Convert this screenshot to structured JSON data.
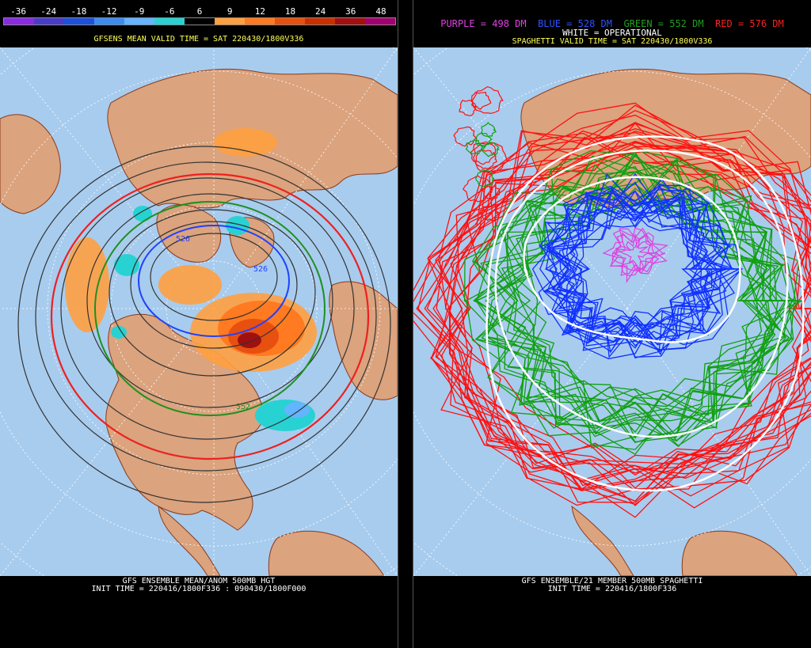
{
  "left": {
    "colorbar": {
      "labels": [
        "-36",
        "-24",
        "-18",
        "-12",
        "-9",
        "-6",
        "6",
        "9",
        "12",
        "18",
        "24",
        "36",
        "48"
      ],
      "colors": [
        "#8a2be2",
        "#4b3cc8",
        "#1e50dc",
        "#3c8cf0",
        "#64b4ff",
        "#28d2d2",
        "#000000",
        "#ffa040",
        "#ff7a20",
        "#e85010",
        "#c83000",
        "#a01010",
        "#a00070"
      ]
    },
    "title": "GFSENS MEAN VALID TIME = SAT 220430/1800V336",
    "contour_labels": [
      "526",
      "526",
      "552"
    ],
    "footer_line1": "GFS ENSEMBLE MEAN/ANOM 500MB HGT",
    "footer_line2": "INIT TIME = 220416/1800F336 : 090430/1800F000"
  },
  "right": {
    "legend": {
      "purple": "PURPLE = 498 DM",
      "blue": "BLUE = 528 DM",
      "green": "GREEN = 552 DM",
      "red": "RED = 576 DM",
      "white": "WHITE = OPERATIONAL"
    },
    "title": "SPAGHETTI VALID TIME = SAT 220430/1800V336",
    "footer_line1": "GFS ENSEMBLE/21 MEMBER 500MB SPAGHETTI",
    "footer_line2": "INIT TIME = 220416/1800F336"
  },
  "colors": {
    "ocean": "#a8ccee",
    "land": "#dba37e",
    "coast": "#8b3a1a",
    "grid": "#ffffff"
  }
}
